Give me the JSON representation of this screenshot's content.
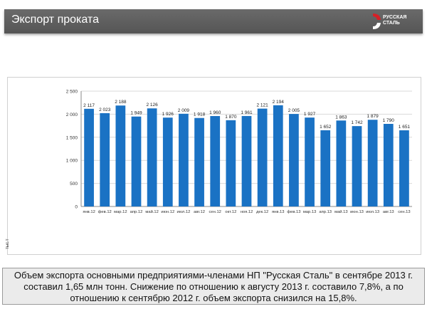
{
  "header": {
    "title": "Экспорт проката",
    "logo_text_line1": "РУССКАЯ",
    "logo_text_line2": "СТАЛЬ"
  },
  "footer": {
    "text": "Объем экспорта основными предприятиями-членами НП \"Русская Сталь\" в сентябре 2013 г. составил 1,65 млн тонн. Снижение  по отношению к августу 2013 г. составило 7,8%, а по отношению к сентябрю 2012 г. объем экспорта снизился на 15,8%."
  },
  "colors": {
    "bar": "#1a72c4",
    "header_bg": "#5e5e5e",
    "logo_red": "#d62027"
  },
  "chart_data": {
    "type": "bar",
    "title": "",
    "xlabel": "",
    "ylabel": "тыс.т",
    "ylim": [
      0,
      2500
    ],
    "yticks": [
      0,
      500,
      1000,
      1500,
      2000,
      2500
    ],
    "ytick_labels": [
      "0",
      "500",
      "1 000",
      "1 500",
      "2 000",
      "2 500"
    ],
    "grid": true,
    "legend": "none",
    "categories": [
      "янв.12",
      "фев.12",
      "мар.12",
      "апр.12",
      "май.12",
      "июн.12",
      "июл.12",
      "авг.12",
      "сен.12",
      "окт.12",
      "ноя.12",
      "дек.12",
      "янв.13",
      "фев.13",
      "мар.13",
      "апр.13",
      "май.13",
      "июн.13",
      "июл.13",
      "авг.13",
      "сен.13"
    ],
    "values": [
      2117,
      2023,
      2188,
      1949,
      2126,
      1926,
      2009,
      1918,
      1960,
      1870,
      1961,
      2121,
      2194,
      2005,
      1927,
      1652,
      1863,
      1742,
      1879,
      1790,
      1651
    ],
    "value_labels": [
      "2 117",
      "2 023",
      "2 188",
      "1 949",
      "2 126",
      "1 926",
      "2 009",
      "1 918",
      "1 960",
      "1 870",
      "1 961",
      "2 121",
      "2 194",
      "2 005",
      "1 927",
      "1 652",
      "1 863",
      "1 742",
      "1 879",
      "1 790",
      "1 651"
    ]
  }
}
